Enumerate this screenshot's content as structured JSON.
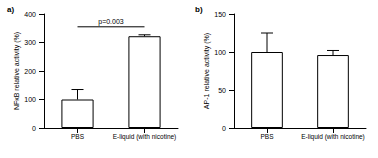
{
  "chart_data": [
    {
      "type": "bar",
      "title": "a)",
      "y_label": "NFκB relative activity (%)",
      "categories": [
        "PBS",
        "E-liquid (with nicotine)"
      ],
      "values": [
        100,
        322
      ],
      "errors": [
        35,
        5
      ],
      "color": "#ffffff",
      "ylim": [
        0,
        400
      ],
      "yticks": [
        0,
        100,
        200,
        300,
        400
      ],
      "grid": false,
      "annotation": "p=0.003"
    },
    {
      "type": "bar",
      "title": "b)",
      "y_label": "AP-1 relative activity (%)",
      "categories": [
        "PBS",
        "E-liquid (with nicotine)"
      ],
      "values": [
        100,
        96
      ],
      "errors": [
        25,
        6
      ],
      "color": "#ffffff",
      "ylim": [
        0,
        150
      ],
      "yticks": [
        0,
        50,
        100,
        150
      ],
      "grid": false
    }
  ]
}
